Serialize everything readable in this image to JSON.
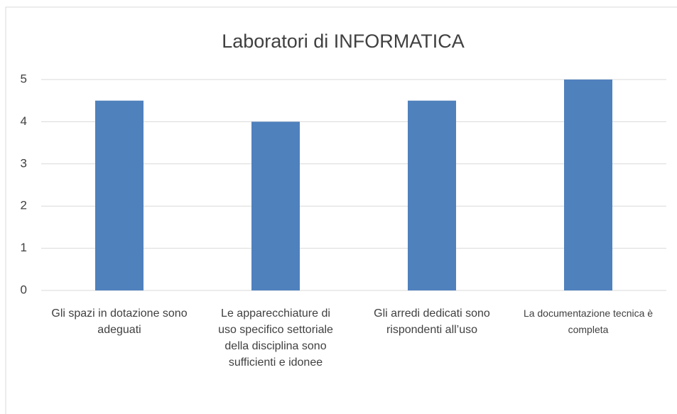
{
  "chart_data": {
    "type": "bar",
    "title": "Laboratori di INFORMATICA",
    "categories": [
      "Gli spazi in dotazione sono adeguati",
      "Le apparecchiature di uso specifico settoriale della disciplina sono sufficienti e idonee",
      "Gli arredi dedicati sono rispondenti all’uso",
      "La documentazione tecnica è completa"
    ],
    "values": [
      4.5,
      4,
      4.5,
      5
    ],
    "color": "#4f81bd",
    "ylim": [
      0,
      5
    ],
    "yticks": [
      0,
      1,
      2,
      3,
      4,
      5
    ],
    "grid": true
  }
}
